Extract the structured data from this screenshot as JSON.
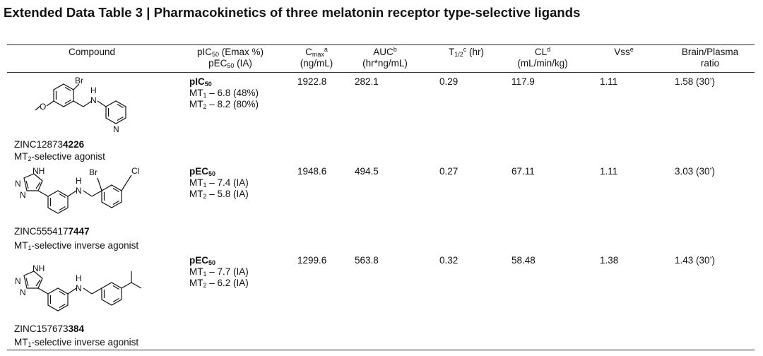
{
  "title": "Extended Data Table 3 | Pharmacokinetics of three melatonin receptor type-selective ligands",
  "headers": {
    "compound": "Compound",
    "potency_line1": "pIC",
    "potency_line1_sub": "50",
    "potency_line1_rest": " (Emax %)",
    "potency_line2": "pEC",
    "potency_line2_sub": "50",
    "potency_line2_rest": " (IA)",
    "cmax": "C",
    "cmax_sub": "max",
    "cmax_sup": "a",
    "cmax_unit": "(ng/mL)",
    "auc": "AUC",
    "auc_sup": "b",
    "auc_unit": "(hr*ng/mL)",
    "thalf": "T",
    "thalf_sub": "1/2",
    "thalf_sup": "c",
    "thalf_rest": " (hr)",
    "cl": "CL",
    "cl_sup": "d",
    "cl_unit": "(mL/min/kg)",
    "vss": "Vss",
    "vss_sup": "e",
    "brain_line1": "Brain/Plasma",
    "brain_line2": "ratio"
  },
  "rows": [
    {
      "zinc_prefix": "ZINC12873",
      "zinc_bold": "4226",
      "desc_pre": "MT",
      "desc_sub": "2",
      "desc_post": "-selective agonist",
      "potency_title": "pIC",
      "potency_title_sub": "50",
      "potency_mt1_label": "MT",
      "potency_mt1_sub": "1",
      "potency_mt1": " – 6.8 (48%)",
      "potency_mt2_label": "MT",
      "potency_mt2_sub": "2",
      "potency_mt2": " – 8.2 (80%)",
      "cmax": "1922.8",
      "auc": "282.1",
      "thalf": "0.29",
      "cl": "117.9",
      "vss": "1.11",
      "brain": "1.58 (30’)",
      "atoms": {
        "br": "Br",
        "o": "O",
        "nh_h": "H",
        "nh_n": "N",
        "py_n": "N"
      }
    },
    {
      "zinc_prefix": "ZINC555417",
      "zinc_bold": "7447",
      "desc_pre": "MT",
      "desc_sub": "1",
      "desc_post": "-selective inverse agonist",
      "potency_title": "pEC",
      "potency_title_sub": "50",
      "potency_mt1_label": "MT",
      "potency_mt1_sub": "1",
      "potency_mt1": " – 7.4 (IA)",
      "potency_mt2_label": "MT",
      "potency_mt2_sub": "2",
      "potency_mt2": " – 5.8 (IA)",
      "cmax": "1948.6",
      "auc": "494.5",
      "thalf": "0.27",
      "cl": "67.11",
      "vss": "1.11",
      "brain": "3.03 (30’)",
      "atoms": {
        "nh": "NH",
        "n1": "N",
        "n2": "N",
        "h": "H",
        "n": "N",
        "br": "Br",
        "cl": "Cl"
      }
    },
    {
      "zinc_prefix": "ZINC157673",
      "zinc_bold": "384",
      "desc_pre": "MT",
      "desc_sub": "1",
      "desc_post": "-selective inverse agonist",
      "potency_title": "pEC",
      "potency_title_sub": "50",
      "potency_mt1_label": "MT",
      "potency_mt1_sub": "1",
      "potency_mt1": " – 7.7 (IA)",
      "potency_mt2_label": "MT",
      "potency_mt2_sub": "2",
      "potency_mt2": " – 6.2 (IA)",
      "cmax": "1299.6",
      "auc": "563.8",
      "thalf": "0.32",
      "cl": "58.48",
      "vss": "1.38",
      "brain": "1.43 (30’)",
      "atoms": {
        "nh": "NH",
        "n1": "N",
        "n2": "N",
        "h": "H",
        "n": "N"
      }
    }
  ]
}
